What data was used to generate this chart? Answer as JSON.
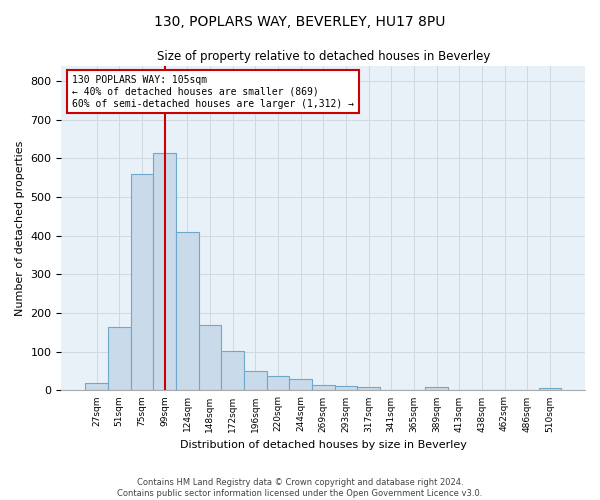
{
  "title1": "130, POPLARS WAY, BEVERLEY, HU17 8PU",
  "title2": "Size of property relative to detached houses in Beverley",
  "xlabel": "Distribution of detached houses by size in Beverley",
  "ylabel": "Number of detached properties",
  "bar_color": "#c9daea",
  "bar_edge_color": "#6ea8cb",
  "grid_color": "#d0d8e0",
  "bg_color": "#e8f0f8",
  "annotation_box_color": "#cc0000",
  "vline_color": "#cc0000",
  "categories": [
    "27sqm",
    "51sqm",
    "75sqm",
    "99sqm",
    "124sqm",
    "148sqm",
    "172sqm",
    "196sqm",
    "220sqm",
    "244sqm",
    "269sqm",
    "293sqm",
    "317sqm",
    "341sqm",
    "365sqm",
    "389sqm",
    "413sqm",
    "438sqm",
    "462sqm",
    "486sqm",
    "510sqm"
  ],
  "values": [
    18,
    163,
    560,
    615,
    410,
    170,
    103,
    50,
    38,
    30,
    14,
    12,
    10,
    0,
    0,
    8,
    0,
    0,
    0,
    0,
    7
  ],
  "vline_x_index": 3,
  "annotation_text": "130 POPLARS WAY: 105sqm\n← 40% of detached houses are smaller (869)\n60% of semi-detached houses are larger (1,312) →",
  "footer1": "Contains HM Land Registry data © Crown copyright and database right 2024.",
  "footer2": "Contains public sector information licensed under the Open Government Licence v3.0.",
  "ylim": [
    0,
    840
  ],
  "yticks": [
    0,
    100,
    200,
    300,
    400,
    500,
    600,
    700,
    800
  ]
}
